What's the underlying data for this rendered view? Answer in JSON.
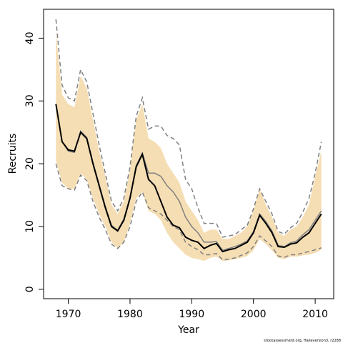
{
  "chart_data": {
    "type": "line",
    "xlabel": "Year",
    "ylabel": "Recruits",
    "xlim": [
      1966,
      2013
    ],
    "ylim": [
      -1.5,
      44.6
    ],
    "x_ticks": [
      1970,
      1980,
      1990,
      2000,
      2010
    ],
    "x_tick_labels": [
      "1970",
      "1980",
      "1990",
      "2000",
      "2010"
    ],
    "y_ticks": [
      0,
      10,
      20,
      30,
      40
    ],
    "y_tick_labels": [
      "0",
      "10",
      "20",
      "30",
      "40"
    ],
    "grid": false,
    "colors": {
      "band": "#f5deb3",
      "median": "#000000",
      "alt_median": "#808080",
      "alt_interval": "#808080"
    },
    "x": [
      1968,
      1969,
      1970,
      1971,
      1972,
      1973,
      1974,
      1975,
      1976,
      1977,
      1978,
      1979,
      1980,
      1981,
      1982,
      1983,
      1984,
      1985,
      1986,
      1987,
      1988,
      1989,
      1990,
      1991,
      1992,
      1993,
      1994,
      1995,
      1996,
      1997,
      1998,
      1999,
      2000,
      2001,
      2002,
      2003,
      2004,
      2005,
      2006,
      2007,
      2008,
      2009,
      2010,
      2011
    ],
    "band_upper": [
      41.0,
      31.0,
      29.5,
      29.0,
      34.0,
      32.0,
      27.0,
      22.0,
      18.0,
      13.5,
      12.0,
      14.0,
      19.0,
      27.0,
      29.5,
      24.0,
      23.5,
      22.5,
      20.0,
      18.5,
      17.0,
      14.0,
      12.5,
      11.0,
      9.0,
      9.5,
      9.5,
      8.0,
      8.0,
      8.5,
      9.0,
      10.0,
      12.5,
      16.0,
      13.5,
      11.5,
      9.0,
      8.5,
      9.5,
      10.0,
      11.5,
      13.5,
      18.0,
      22.0
    ],
    "band_lower": [
      20.5,
      17.0,
      16.0,
      16.0,
      18.5,
      17.5,
      14.5,
      12.0,
      10.0,
      7.5,
      6.5,
      7.5,
      10.5,
      14.5,
      15.5,
      12.5,
      12.0,
      11.0,
      9.0,
      7.5,
      6.5,
      5.5,
      5.0,
      4.8,
      4.5,
      5.0,
      5.2,
      4.5,
      4.6,
      4.8,
      5.0,
      5.3,
      6.2,
      8.0,
      7.2,
      6.2,
      5.0,
      4.8,
      5.2,
      5.2,
      5.4,
      5.5,
      5.8,
      6.3
    ],
    "series": [
      {
        "values": [
          29.5,
          23.5,
          22.2,
          22.0,
          25.0,
          24.0,
          20.0,
          16.5,
          13.0,
          10.0,
          9.3,
          11.0,
          14.5,
          19.5,
          21.5,
          17.5,
          16.5,
          14.0,
          11.5,
          10.2,
          9.8,
          8.3,
          7.8,
          7.5,
          6.5,
          7.0,
          7.3,
          6.0,
          6.3,
          6.5,
          7.0,
          7.5,
          9.0,
          11.8,
          10.5,
          9.0,
          6.8,
          6.7,
          7.2,
          7.4,
          8.3,
          9.0,
          10.5,
          12.0
        ]
      },
      {
        "values": [
          29.5,
          23.5,
          22.0,
          21.8,
          25.2,
          24.2,
          20.2,
          16.7,
          13.2,
          10.2,
          9.4,
          11.2,
          14.7,
          19.7,
          21.7,
          18.5,
          18.5,
          18.0,
          16.5,
          15.5,
          14.0,
          11.5,
          10.0,
          9.0,
          7.5,
          7.5,
          7.6,
          6.2,
          6.5,
          6.8,
          7.2,
          7.7,
          9.2,
          12.0,
          10.8,
          9.3,
          7.0,
          6.8,
          7.4,
          7.7,
          8.7,
          9.5,
          11.0,
          12.5
        ]
      },
      {
        "values": [
          43.0,
          32.5,
          30.5,
          30.0,
          35.0,
          33.0,
          28.0,
          23.0,
          18.5,
          14.0,
          12.5,
          14.5,
          19.5,
          27.5,
          30.5,
          25.5,
          26.0,
          26.0,
          24.5,
          24.0,
          23.0,
          17.5,
          16.0,
          13.0,
          10.5,
          10.5,
          10.5,
          8.3,
          8.5,
          8.7,
          9.5,
          10.2,
          12.8,
          16.0,
          14.0,
          12.0,
          9.2,
          8.8,
          9.8,
          10.5,
          12.3,
          14.5,
          18.5,
          23.5
        ]
      },
      {
        "values": [
          20.0,
          16.5,
          16.0,
          15.8,
          18.2,
          17.3,
          14.0,
          11.5,
          9.5,
          7.2,
          6.5,
          7.5,
          10.0,
          14.0,
          15.5,
          13.0,
          12.5,
          12.0,
          11.0,
          10.0,
          9.5,
          7.5,
          6.8,
          6.3,
          5.5,
          5.5,
          5.7,
          4.7,
          4.8,
          5.0,
          5.4,
          5.8,
          6.8,
          8.5,
          7.7,
          6.8,
          5.3,
          5.1,
          5.5,
          5.5,
          5.8,
          6.0,
          6.3,
          6.6
        ]
      }
    ],
    "credit_text": "stockassessment.org, Hakeversion3, r2288"
  }
}
